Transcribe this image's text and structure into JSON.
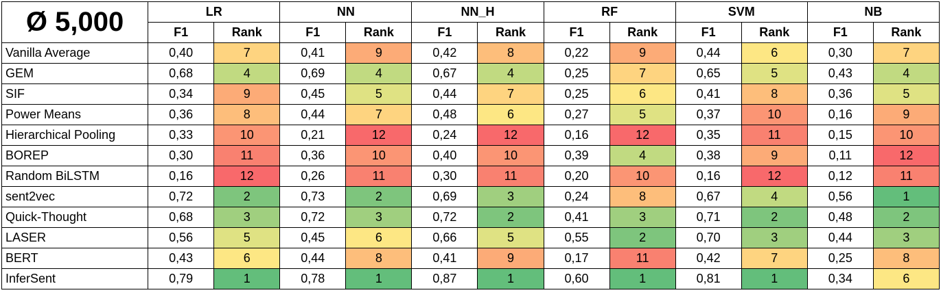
{
  "title": "Ø 5,000",
  "sub_headers": {
    "f1": "F1",
    "rank": "Rank"
  },
  "models": [
    "LR",
    "NN",
    "NN_H",
    "RF",
    "SVM",
    "NB"
  ],
  "rows": [
    {
      "name": "Vanilla Average",
      "cells": [
        [
          "0,40",
          "7"
        ],
        [
          "0,41",
          "9"
        ],
        [
          "0,42",
          "8"
        ],
        [
          "0,22",
          "9"
        ],
        [
          "0,44",
          "6"
        ],
        [
          "0,30",
          "7"
        ]
      ]
    },
    {
      "name": "GEM",
      "cells": [
        [
          "0,68",
          "4"
        ],
        [
          "0,69",
          "4"
        ],
        [
          "0,67",
          "4"
        ],
        [
          "0,25",
          "7"
        ],
        [
          "0,65",
          "5"
        ],
        [
          "0,43",
          "4"
        ]
      ]
    },
    {
      "name": "SIF",
      "cells": [
        [
          "0,34",
          "9"
        ],
        [
          "0,45",
          "5"
        ],
        [
          "0,44",
          "7"
        ],
        [
          "0,25",
          "6"
        ],
        [
          "0,41",
          "8"
        ],
        [
          "0,36",
          "5"
        ]
      ]
    },
    {
      "name": "Power Means",
      "cells": [
        [
          "0,36",
          "8"
        ],
        [
          "0,44",
          "7"
        ],
        [
          "0,48",
          "6"
        ],
        [
          "0,27",
          "5"
        ],
        [
          "0,37",
          "10"
        ],
        [
          "0,16",
          "9"
        ]
      ]
    },
    {
      "name": "Hierarchical Pooling",
      "cells": [
        [
          "0,33",
          "10"
        ],
        [
          "0,21",
          "12"
        ],
        [
          "0,24",
          "12"
        ],
        [
          "0,16",
          "12"
        ],
        [
          "0,35",
          "11"
        ],
        [
          "0,15",
          "10"
        ]
      ]
    },
    {
      "name": "BOREP",
      "cells": [
        [
          "0,30",
          "11"
        ],
        [
          "0,36",
          "10"
        ],
        [
          "0,40",
          "10"
        ],
        [
          "0,39",
          "4"
        ],
        [
          "0,38",
          "9"
        ],
        [
          "0,11",
          "12"
        ]
      ]
    },
    {
      "name": "Random BiLSTM",
      "cells": [
        [
          "0,16",
          "12"
        ],
        [
          "0,26",
          "11"
        ],
        [
          "0,30",
          "11"
        ],
        [
          "0,20",
          "10"
        ],
        [
          "0,16",
          "12"
        ],
        [
          "0,12",
          "11"
        ]
      ]
    },
    {
      "name": "sent2vec",
      "cells": [
        [
          "0,72",
          "2"
        ],
        [
          "0,73",
          "2"
        ],
        [
          "0,69",
          "3"
        ],
        [
          "0,24",
          "8"
        ],
        [
          "0,67",
          "4"
        ],
        [
          "0,56",
          "1"
        ]
      ]
    },
    {
      "name": "Quick-Thought",
      "cells": [
        [
          "0,68",
          "3"
        ],
        [
          "0,72",
          "3"
        ],
        [
          "0,72",
          "2"
        ],
        [
          "0,41",
          "3"
        ],
        [
          "0,71",
          "2"
        ],
        [
          "0,48",
          "2"
        ]
      ]
    },
    {
      "name": "LASER",
      "cells": [
        [
          "0,56",
          "5"
        ],
        [
          "0,45",
          "6"
        ],
        [
          "0,66",
          "5"
        ],
        [
          "0,55",
          "2"
        ],
        [
          "0,70",
          "3"
        ],
        [
          "0,44",
          "3"
        ]
      ]
    },
    {
      "name": "BERT",
      "cells": [
        [
          "0,43",
          "6"
        ],
        [
          "0,44",
          "8"
        ],
        [
          "0,41",
          "9"
        ],
        [
          "0,17",
          "11"
        ],
        [
          "0,42",
          "7"
        ],
        [
          "0,25",
          "8"
        ]
      ]
    },
    {
      "name": "InferSent",
      "cells": [
        [
          "0,79",
          "1"
        ],
        [
          "0,78",
          "1"
        ],
        [
          "0,87",
          "1"
        ],
        [
          "0,60",
          "1"
        ],
        [
          "0,81",
          "1"
        ],
        [
          "0,34",
          "6"
        ]
      ]
    }
  ],
  "rank_colors": {
    "1": "#63be7b",
    "2": "#7ec57d",
    "3": "#a0cf7f",
    "4": "#c1da81",
    "5": "#dfe283",
    "6": "#fde784",
    "7": "#fed480",
    "8": "#fdbe7b",
    "9": "#fcab77",
    "10": "#fb9574",
    "11": "#f98170",
    "12": "#f8696b"
  }
}
